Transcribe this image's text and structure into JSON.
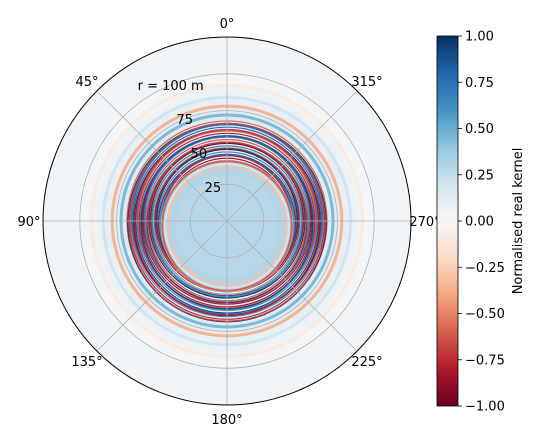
{
  "chart_data": {
    "type": "heatmap",
    "projection": "polar",
    "title": "",
    "theta_direction": "clockwise",
    "theta_zero": "top",
    "theta_ticks": [
      {
        "deg": 0,
        "label": "0°"
      },
      {
        "deg": 45,
        "label": "45°"
      },
      {
        "deg": 90,
        "label": "90°"
      },
      {
        "deg": 135,
        "label": "135°"
      },
      {
        "deg": 180,
        "label": "180°"
      },
      {
        "deg": 225,
        "label": "225°"
      },
      {
        "deg": 270,
        "label": "270°"
      },
      {
        "deg": 315,
        "label": "315°"
      }
    ],
    "r_ticks": [
      {
        "value": 25,
        "label": "25"
      },
      {
        "value": 50,
        "label": "50"
      },
      {
        "value": 75,
        "label": "75"
      },
      {
        "value": 100,
        "label": "r = 100 m"
      }
    ],
    "r_range": [
      0,
      125
    ],
    "r_label_angle_deg": 22.5,
    "grid": true,
    "colormap": "RdBu",
    "colorbar": {
      "label": "Normalised real kernel",
      "range": [
        -1.0,
        1.0
      ],
      "ticks": [
        {
          "value": 1.0,
          "label": "1.00"
        },
        {
          "value": 0.75,
          "label": "0.75"
        },
        {
          "value": 0.5,
          "label": "0.50"
        },
        {
          "value": 0.25,
          "label": "0.25"
        },
        {
          "value": 0.0,
          "label": "0.00"
        },
        {
          "value": -0.25,
          "label": "−0.25"
        },
        {
          "value": -0.5,
          "label": "−0.50"
        },
        {
          "value": -0.75,
          "label": "−0.75"
        },
        {
          "value": -1.0,
          "label": "−1.00"
        }
      ]
    },
    "field_features": {
      "inner_disk": {
        "r_max": 45,
        "value": 0.3
      },
      "oscillating_band": {
        "r_min": 38,
        "r_max": 68,
        "amplitude": 1.0
      },
      "outer_rings": [
        {
          "r": 72,
          "value": 0.45
        },
        {
          "r": 78,
          "value": -0.35
        },
        {
          "r": 84,
          "value": 0.2
        },
        {
          "r": 92,
          "value": -0.1
        }
      ],
      "background": {
        "value": 0.03
      }
    }
  }
}
